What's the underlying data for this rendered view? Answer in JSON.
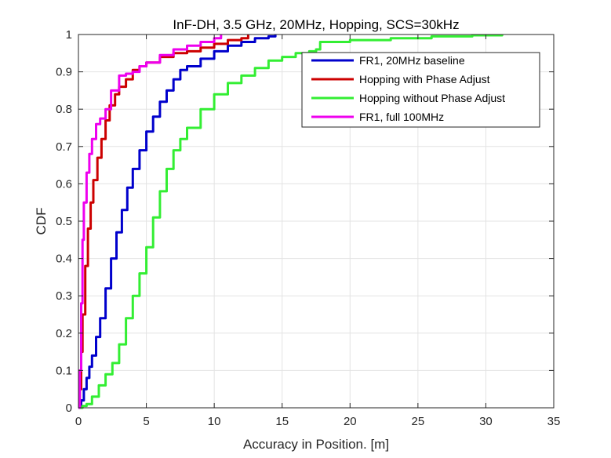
{
  "chart_data": {
    "type": "line",
    "title": "InF-DH, 3.5 GHz, 20MHz, Hopping, SCS=30kHz",
    "xlabel": "Accuracy in Position. [m]",
    "ylabel": "CDF",
    "xlim": [
      0,
      35
    ],
    "ylim": [
      0,
      1
    ],
    "xticks": [
      "0",
      "5",
      "10",
      "15",
      "20",
      "25",
      "30",
      "35"
    ],
    "yticks": [
      "0",
      "0.1",
      "0.2",
      "0.3",
      "0.4",
      "0.5",
      "0.6",
      "0.7",
      "0.8",
      "0.9",
      "1"
    ],
    "grid": true,
    "legend_position": "top-right",
    "series": [
      {
        "name": "FR1, 20MHz baseline",
        "color": "#0000cc",
        "x": [
          0,
          0.2,
          0.4,
          0.6,
          0.8,
          1.0,
          1.3,
          1.6,
          2.0,
          2.4,
          2.8,
          3.2,
          3.6,
          4.0,
          4.5,
          5.0,
          5.5,
          6.0,
          6.5,
          7.0,
          7.5,
          8.0,
          9.0,
          10.0,
          11.0,
          12.0,
          13.0,
          14.0,
          14.5
        ],
        "y": [
          0,
          0.02,
          0.05,
          0.08,
          0.11,
          0.14,
          0.19,
          0.24,
          0.32,
          0.4,
          0.47,
          0.53,
          0.59,
          0.64,
          0.69,
          0.74,
          0.78,
          0.82,
          0.85,
          0.88,
          0.905,
          0.915,
          0.935,
          0.955,
          0.97,
          0.98,
          0.99,
          0.995,
          1.0
        ]
      },
      {
        "name": "Hopping with Phase Adjust",
        "color": "#cc0000",
        "x": [
          0,
          0.1,
          0.2,
          0.3,
          0.5,
          0.7,
          0.9,
          1.1,
          1.4,
          1.7,
          2.0,
          2.3,
          2.7,
          3.0,
          3.5,
          4.0,
          4.5,
          5.0,
          6.0,
          7.0,
          8.0,
          9.0,
          10.0,
          11.0,
          12.0,
          12.5
        ],
        "y": [
          0,
          0.05,
          0.15,
          0.25,
          0.38,
          0.48,
          0.55,
          0.61,
          0.67,
          0.72,
          0.77,
          0.81,
          0.84,
          0.86,
          0.88,
          0.905,
          0.915,
          0.925,
          0.94,
          0.95,
          0.955,
          0.965,
          0.975,
          0.985,
          0.99,
          1.0
        ]
      },
      {
        "name": "Hopping without Phase Adjust",
        "color": "#33ee33",
        "x": [
          0,
          0.3,
          0.6,
          1.0,
          1.5,
          2.0,
          2.5,
          3.0,
          3.5,
          4.0,
          4.5,
          5.0,
          5.5,
          6.0,
          6.5,
          7.0,
          7.5,
          8.0,
          9.0,
          10.0,
          11.0,
          12.0,
          13.0,
          14.0,
          15.0,
          16.0,
          17.0,
          17.5,
          17.8,
          20.0,
          23.0,
          26.0,
          29.0,
          31.2
        ],
        "y": [
          0,
          0.005,
          0.01,
          0.03,
          0.06,
          0.09,
          0.12,
          0.17,
          0.24,
          0.3,
          0.36,
          0.43,
          0.51,
          0.58,
          0.64,
          0.69,
          0.72,
          0.75,
          0.8,
          0.84,
          0.87,
          0.89,
          0.91,
          0.93,
          0.94,
          0.95,
          0.955,
          0.96,
          0.98,
          0.985,
          0.99,
          0.995,
          0.998,
          1.0
        ]
      },
      {
        "name": "FR1, full 100MHz",
        "color": "#ee00ee",
        "x": [
          0,
          0.1,
          0.2,
          0.3,
          0.4,
          0.6,
          0.8,
          1.0,
          1.3,
          1.6,
          2.0,
          2.4,
          3.0,
          3.5,
          4.0,
          4.5,
          5.0,
          6.0,
          7.0,
          8.0,
          9.0,
          10.0,
          10.5
        ],
        "y": [
          0,
          0.1,
          0.28,
          0.45,
          0.55,
          0.63,
          0.68,
          0.72,
          0.76,
          0.775,
          0.8,
          0.85,
          0.89,
          0.895,
          0.9,
          0.915,
          0.925,
          0.945,
          0.96,
          0.97,
          0.98,
          0.99,
          1.0
        ]
      }
    ]
  }
}
